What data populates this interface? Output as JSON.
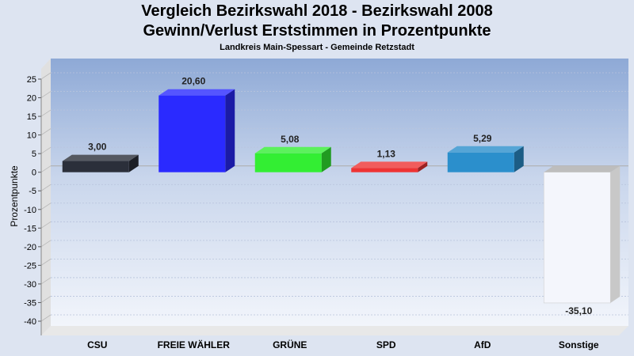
{
  "title": "Vergleich Bezirkswahl 2018 - Bezirkswahl 2008",
  "subtitle": "Gewinn/Verlust Erststimmen in Prozentpunkte",
  "caption": "Landkreis Main-Spessart - Gemeinde Retzstadt",
  "chart_data": {
    "type": "bar",
    "title": "Vergleich Bezirkswahl 2018 - Bezirkswahl 2008",
    "subtitle": "Gewinn/Verlust Erststimmen in Prozentpunkte",
    "ylabel": "Prozentpunkte",
    "xlabel": "",
    "ylim": [
      -40,
      25
    ],
    "yticks": [
      25,
      20,
      15,
      10,
      5,
      0,
      -5,
      -10,
      -15,
      -20,
      -25,
      -30,
      -35,
      -40
    ],
    "grid": true,
    "categories": [
      "CSU",
      "FREIE WÄHLER",
      "GRÜNE",
      "SPD",
      "AfD",
      "Sonstige"
    ],
    "values": [
      3.0,
      20.6,
      5.08,
      1.13,
      5.29,
      -35.1
    ],
    "value_labels": [
      "3,00",
      "20,60",
      "5,08",
      "1,13",
      "5,29",
      "-35,10"
    ],
    "colors": [
      "#2b2f3a",
      "#2a2aff",
      "#33ee33",
      "#ee3333",
      "#2b8fcc",
      "#f4f6fc"
    ]
  }
}
